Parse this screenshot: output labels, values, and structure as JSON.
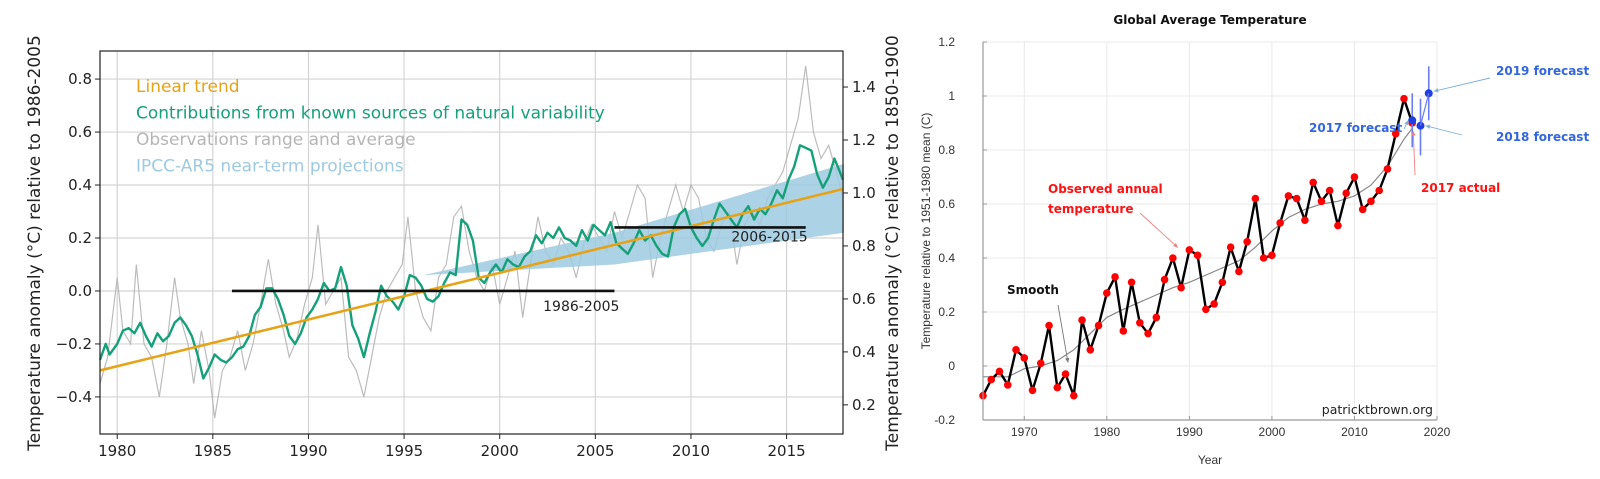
{
  "colors": {
    "trend": "#E6A317",
    "natural": "#16A07A",
    "observations": "#B5B5B5",
    "projection": "#9ECAE1",
    "period_bar": "#111111",
    "obs_points": "#FF0000",
    "forecast": "#1F3FE0",
    "forecast_text": "#3366DD",
    "actual_text": "#FF1111",
    "smooth": "#888888"
  },
  "chart_data": [
    {
      "type": "line",
      "id": "left",
      "title": "",
      "xlabel": "",
      "ylabel": "Temperature anomaly (°C) relative to 1986-2005",
      "ylabel_right": "Temperature anomaly (°C) relative to 1850-1900",
      "xlim": [
        1979.1,
        2017.95
      ],
      "ylim": [
        -0.54,
        0.906
      ],
      "right_axis_offset": 0.63,
      "grid": true,
      "legend_position": "top-left",
      "x_ticks": [
        1980,
        1985,
        1990,
        1995,
        2000,
        2005,
        2010,
        2015
      ],
      "x_tick_labels": [
        "1980",
        "1985",
        "1990",
        "1995",
        "2000",
        "2005",
        "2010",
        "2015"
      ],
      "y_ticks": [
        -0.4,
        -0.2,
        0.0,
        0.2,
        0.4,
        0.6,
        0.8
      ],
      "y_tick_labels": [
        "−0.4",
        "−0.2",
        "0.0",
        "0.2",
        "0.4",
        "0.6",
        "0.8"
      ],
      "y_right_ticks": [
        0.2,
        0.4,
        0.6,
        0.8,
        1.0,
        1.2,
        1.4
      ],
      "y_right_tick_labels": [
        "0.2",
        "0.4",
        "0.6",
        "0.8",
        "1.0",
        "1.2",
        "1.4"
      ],
      "legend": [
        {
          "label": "Linear trend",
          "color_key": "trend"
        },
        {
          "label": "Contributions from known sources of natural variability",
          "color_key": "natural"
        },
        {
          "label": "Observations range and average",
          "color_key": "observations"
        },
        {
          "label": "IPCC-AR5 near-term projections",
          "color_key": "projection"
        }
      ],
      "linear_trend": {
        "x": [
          1979.1,
          2017.95
        ],
        "y": [
          -0.3,
          0.385
        ]
      },
      "period_means": [
        {
          "label": "1986-2005",
          "x": [
            1986,
            2006
          ],
          "y": 0.0
        },
        {
          "label": "2006-2015",
          "x": [
            2006,
            2016
          ],
          "y": 0.24
        }
      ],
      "projection_band": {
        "x": [
          1996,
          2006,
          2018
        ],
        "lower": [
          0.06,
          0.1,
          0.22
        ],
        "upper": [
          0.06,
          0.22,
          0.48
        ]
      },
      "natural_variability": {
        "x": [
          1979.1,
          1979.4,
          1979.6,
          1980.0,
          1980.3,
          1980.6,
          1980.9,
          1981.2,
          1981.5,
          1981.8,
          1982.1,
          1982.4,
          1982.7,
          1983.0,
          1983.3,
          1983.6,
          1983.9,
          1984.2,
          1984.5,
          1984.8,
          1985.1,
          1985.4,
          1985.7,
          1986.0,
          1986.3,
          1986.6,
          1986.9,
          1987.2,
          1987.5,
          1987.8,
          1988.1,
          1988.4,
          1988.7,
          1989.0,
          1989.3,
          1989.6,
          1989.9,
          1990.2,
          1990.5,
          1990.8,
          1991.1,
          1991.4,
          1991.7,
          1992.0,
          1992.3,
          1992.6,
          1992.9,
          1993.2,
          1993.5,
          1993.8,
          1994.1,
          1994.4,
          1994.7,
          1995.0,
          1995.3,
          1995.6,
          1995.9,
          1996.2,
          1996.5,
          1996.8,
          1997.1,
          1997.4,
          1997.7,
          1998.0,
          1998.3,
          1998.6,
          1998.9,
          1999.2,
          1999.5,
          1999.8,
          2000.1,
          2000.4,
          2000.7,
          2001.0,
          2001.3,
          2001.6,
          2001.9,
          2002.2,
          2002.5,
          2002.8,
          2003.1,
          2003.4,
          2003.7,
          2004.0,
          2004.3,
          2004.6,
          2004.9,
          2005.2,
          2005.5,
          2005.8,
          2006.1,
          2006.4,
          2006.7,
          2007.0,
          2007.3,
          2007.6,
          2007.9,
          2008.2,
          2008.5,
          2008.8,
          2009.1,
          2009.4,
          2009.7,
          2010.0,
          2010.3,
          2010.6,
          2010.9,
          2011.2,
          2011.5,
          2011.8,
          2012.1,
          2012.4,
          2012.7,
          2013.0,
          2013.3,
          2013.6,
          2013.9,
          2014.2,
          2014.5,
          2014.8,
          2015.1,
          2015.4,
          2015.7,
          2016.0,
          2016.3,
          2016.6,
          2016.9,
          2017.2,
          2017.5,
          2017.95
        ],
        "y": [
          -0.26,
          -0.2,
          -0.24,
          -0.2,
          -0.15,
          -0.14,
          -0.16,
          -0.12,
          -0.17,
          -0.21,
          -0.16,
          -0.19,
          -0.17,
          -0.12,
          -0.1,
          -0.13,
          -0.17,
          -0.24,
          -0.33,
          -0.29,
          -0.24,
          -0.26,
          -0.27,
          -0.25,
          -0.22,
          -0.21,
          -0.17,
          -0.09,
          -0.06,
          0.01,
          0.01,
          -0.03,
          -0.09,
          -0.17,
          -0.2,
          -0.16,
          -0.1,
          -0.07,
          -0.03,
          0.03,
          0.0,
          0.01,
          0.09,
          0.02,
          -0.13,
          -0.18,
          -0.25,
          -0.16,
          -0.08,
          0.02,
          -0.02,
          -0.04,
          -0.07,
          -0.02,
          0.06,
          0.05,
          0.02,
          -0.03,
          -0.04,
          -0.02,
          0.03,
          0.07,
          0.06,
          0.27,
          0.25,
          0.19,
          0.05,
          0.03,
          0.07,
          0.1,
          0.07,
          0.12,
          0.1,
          0.09,
          0.13,
          0.15,
          0.21,
          0.18,
          0.22,
          0.2,
          0.24,
          0.2,
          0.19,
          0.17,
          0.23,
          0.19,
          0.25,
          0.23,
          0.21,
          0.26,
          0.18,
          0.16,
          0.14,
          0.18,
          0.23,
          0.19,
          0.21,
          0.17,
          0.14,
          0.13,
          0.24,
          0.29,
          0.31,
          0.24,
          0.2,
          0.17,
          0.2,
          0.27,
          0.33,
          0.3,
          0.27,
          0.24,
          0.29,
          0.32,
          0.27,
          0.31,
          0.29,
          0.33,
          0.38,
          0.35,
          0.42,
          0.47,
          0.55,
          0.54,
          0.53,
          0.44,
          0.39,
          0.43,
          0.5,
          0.42
        ]
      },
      "observations_avg": {
        "x": [
          1979.1,
          1979.5,
          1980.0,
          1980.3,
          1980.7,
          1981.0,
          1981.4,
          1981.8,
          1982.2,
          1982.6,
          1983.0,
          1983.3,
          1983.7,
          1984.0,
          1984.4,
          1984.8,
          1985.1,
          1985.5,
          1985.9,
          1986.3,
          1986.7,
          1987.1,
          1987.5,
          1987.9,
          1988.3,
          1988.7,
          1989.0,
          1989.4,
          1989.8,
          1990.2,
          1990.5,
          1990.9,
          1991.3,
          1991.7,
          1992.1,
          1992.5,
          1992.9,
          1993.3,
          1993.7,
          1994.1,
          1994.5,
          1994.9,
          1995.2,
          1995.6,
          1996.0,
          1996.4,
          1996.8,
          1997.2,
          1997.6,
          1998.0,
          1998.4,
          1998.8,
          1999.2,
          1999.6,
          2000.0,
          2000.4,
          2000.8,
          2001.2,
          2001.6,
          2002.0,
          2002.4,
          2002.8,
          2003.2,
          2003.6,
          2004.0,
          2004.4,
          2004.8,
          2005.2,
          2005.6,
          2006.0,
          2006.4,
          2006.8,
          2007.2,
          2007.6,
          2008.0,
          2008.4,
          2008.8,
          2009.2,
          2009.6,
          2010.0,
          2010.4,
          2010.8,
          2011.2,
          2011.6,
          2012.0,
          2012.4,
          2012.8,
          2013.2,
          2013.6,
          2014.0,
          2014.4,
          2014.8,
          2015.2,
          2015.6,
          2016.0,
          2016.4,
          2016.8,
          2017.2,
          2017.6,
          2017.95
        ],
        "y": [
          -0.35,
          -0.25,
          0.05,
          -0.15,
          -0.2,
          0.1,
          -0.2,
          -0.25,
          -0.4,
          -0.2,
          0.05,
          -0.1,
          -0.2,
          -0.35,
          -0.15,
          -0.3,
          -0.48,
          -0.3,
          -0.25,
          -0.15,
          -0.3,
          -0.2,
          -0.05,
          0.12,
          -0.05,
          -0.15,
          -0.25,
          -0.18,
          -0.05,
          0.05,
          0.25,
          -0.05,
          0.0,
          0.05,
          -0.25,
          -0.3,
          -0.4,
          -0.25,
          -0.1,
          0.0,
          0.05,
          0.1,
          0.28,
          0.0,
          -0.1,
          -0.15,
          0.05,
          0.1,
          0.28,
          0.32,
          0.15,
          0.05,
          0.0,
          0.1,
          -0.05,
          0.05,
          0.15,
          -0.1,
          0.1,
          0.28,
          0.15,
          0.1,
          0.2,
          0.15,
          0.05,
          0.18,
          0.25,
          0.2,
          0.15,
          0.3,
          0.2,
          0.3,
          0.4,
          0.35,
          0.05,
          0.2,
          0.3,
          0.4,
          0.3,
          0.4,
          0.35,
          0.2,
          0.15,
          0.25,
          0.3,
          0.1,
          0.25,
          0.3,
          0.25,
          0.35,
          0.4,
          0.45,
          0.55,
          0.65,
          0.85,
          0.6,
          0.5,
          0.55,
          0.45,
          0.35
        ]
      }
    },
    {
      "type": "line",
      "id": "right",
      "title": "Global Average Temperature",
      "xlabel": "Year",
      "ylabel": "Temperature relative to 1951-1980 mean (C)",
      "xlim": [
        1965,
        2020
      ],
      "ylim": [
        -0.2,
        1.2
      ],
      "grid": true,
      "x_ticks": [
        1970,
        1980,
        1990,
        2000,
        2010,
        2020
      ],
      "x_tick_labels": [
        "1970",
        "1980",
        "1990",
        "2000",
        "2010",
        "2020"
      ],
      "y_ticks": [
        -0.2,
        0,
        0.2,
        0.4,
        0.6,
        0.8,
        1,
        1.2
      ],
      "y_tick_labels": [
        "-0.2",
        "0",
        "0.2",
        "0.4",
        "0.6",
        "0.8",
        "1",
        "1.2"
      ],
      "observed": {
        "x": [
          1965,
          1966,
          1967,
          1968,
          1969,
          1970,
          1971,
          1972,
          1973,
          1974,
          1975,
          1976,
          1977,
          1978,
          1979,
          1980,
          1981,
          1982,
          1983,
          1984,
          1985,
          1986,
          1987,
          1988,
          1989,
          1990,
          1991,
          1992,
          1993,
          1994,
          1995,
          1996,
          1997,
          1998,
          1999,
          2000,
          2001,
          2002,
          2003,
          2004,
          2005,
          2006,
          2007,
          2008,
          2009,
          2010,
          2011,
          2012,
          2013,
          2014,
          2015,
          2016,
          2017
        ],
        "y": [
          -0.11,
          -0.05,
          -0.02,
          -0.07,
          0.06,
          0.03,
          -0.09,
          0.01,
          0.15,
          -0.08,
          -0.03,
          -0.11,
          0.17,
          0.06,
          0.15,
          0.27,
          0.33,
          0.13,
          0.31,
          0.16,
          0.12,
          0.18,
          0.32,
          0.4,
          0.29,
          0.43,
          0.41,
          0.21,
          0.23,
          0.31,
          0.44,
          0.35,
          0.46,
          0.62,
          0.4,
          0.41,
          0.53,
          0.63,
          0.62,
          0.54,
          0.68,
          0.61,
          0.65,
          0.52,
          0.64,
          0.7,
          0.58,
          0.61,
          0.65,
          0.73,
          0.86,
          0.99,
          0.9
        ]
      },
      "smooth": {
        "x": [
          1965,
          1968,
          1970,
          1972,
          1974,
          1976,
          1978,
          1980,
          1982,
          1985,
          1988,
          1990,
          1993,
          1996,
          1998,
          2000,
          2002,
          2004,
          2006,
          2008,
          2010,
          2012,
          2014,
          2016,
          2017
        ],
        "y": [
          -0.04,
          -0.04,
          -0.01,
          0.0,
          0.02,
          0.06,
          0.12,
          0.18,
          0.21,
          0.25,
          0.29,
          0.31,
          0.35,
          0.39,
          0.44,
          0.5,
          0.55,
          0.58,
          0.6,
          0.61,
          0.63,
          0.67,
          0.74,
          0.84,
          0.88
        ]
      },
      "forecasts": [
        {
          "label": "2017 forecast",
          "year": 2017,
          "value": 0.91,
          "low": 0.81,
          "high": 1.01
        },
        {
          "label": "2018 forecast",
          "year": 2018,
          "value": 0.89,
          "low": 0.78,
          "high": 0.99
        },
        {
          "label": "2019 forecast",
          "year": 2019,
          "value": 1.01,
          "low": 0.91,
          "high": 1.11
        }
      ],
      "annotations": [
        {
          "text": [
            "Observed annual",
            "temperature"
          ],
          "color_key": "actual_text",
          "points_to": {
            "x": 1988,
            "y": 0.42
          }
        },
        {
          "text": [
            "Smooth"
          ],
          "color_key": "period_bar",
          "points_to": {
            "x": 1975.3,
            "y": 0.02
          }
        },
        {
          "text": [
            "2017 actual"
          ],
          "color_key": "actual_text",
          "points_to": {
            "x": 2017,
            "y": 0.88
          }
        }
      ],
      "credit": "patricktbrown.org"
    }
  ]
}
